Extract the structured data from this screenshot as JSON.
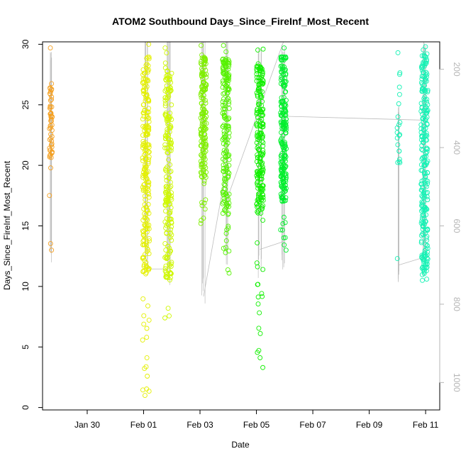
{
  "chart_data": {
    "type": "scatter",
    "title": "ATOM2 Southbound Days_Since_FireInf_Most_Recent",
    "xlabel": "Date",
    "ylabel": "Days_Since_FireInf_Most_Recent",
    "x_ticks": [
      "Jan 30",
      "Feb 01",
      "Feb 03",
      "Feb 05",
      "Feb 07",
      "Feb 09",
      "Feb 11"
    ],
    "y_ticks": [
      "0",
      "5",
      "10",
      "15",
      "20",
      "25",
      "30"
    ],
    "y2_ticks": [
      "200",
      "400",
      "600",
      "800",
      "1000"
    ],
    "xlim": [
      "Jan 28 10:00",
      "Feb 11 12:00"
    ],
    "ylim": [
      -0.2,
      30.2
    ],
    "y2lim": [
      1070,
      130
    ],
    "grid": false,
    "colors": {
      "orange": "#f5a020",
      "yellow": "#e4f000",
      "yellowgreen": "#cff800",
      "green1": "#7fef00",
      "green2": "#55f200",
      "green3": "#11f000",
      "green4": "#00ef2c",
      "cyan": "#15f2b5",
      "line": "#bdbdbd",
      "right_axis": "#b5b5b5"
    },
    "flights": [
      {
        "date": "Jan 28 17:00",
        "color": "orange",
        "count": 55,
        "ymin": 13.0,
        "ymax": 29.7,
        "dense": [
          20.5,
          26.5
        ],
        "spread": 0.05,
        "alt_top": 150,
        "alt_bottom": 720
      },
      {
        "date": "Feb 01 02:00",
        "color": "yellow",
        "count": 230,
        "ymin": 1.0,
        "ymax": 30.0,
        "dense": [
          11.0,
          29.0
        ],
        "spread": 0.12,
        "alt_top": 100,
        "alt_bottom": 720
      },
      {
        "date": "Feb 01 21:00",
        "color": "yellowgreen",
        "count": 200,
        "ymin": 7.4,
        "ymax": 29.7,
        "dense": [
          10.5,
          28.0
        ],
        "spread": 0.12,
        "alt_top": 100,
        "alt_bottom": 760
      },
      {
        "date": "Feb 03 03:00",
        "color": "green1",
        "count": 170,
        "ymin": 15.2,
        "ymax": 29.9,
        "dense": [
          19.0,
          29.0
        ],
        "spread": 0.1,
        "alt_top": 110,
        "alt_bottom": 800
      },
      {
        "date": "Feb 03 22:00",
        "color": "green2",
        "count": 190,
        "ymin": 11.1,
        "ymax": 29.9,
        "dense": [
          16.0,
          29.0
        ],
        "spread": 0.12,
        "alt_top": 110,
        "alt_bottom": 700
      },
      {
        "date": "Feb 05 03:00",
        "color": "green3",
        "count": 220,
        "ymin": 3.3,
        "ymax": 29.6,
        "dense": [
          16.0,
          28.5
        ],
        "spread": 0.12,
        "alt_top": 130,
        "alt_bottom": 740
      },
      {
        "date": "Feb 05 23:00",
        "color": "green4",
        "count": 210,
        "ymin": 13.0,
        "ymax": 29.7,
        "dense": [
          17.0,
          29.0
        ],
        "spread": 0.1,
        "alt_top": 130,
        "alt_bottom": 730
      },
      {
        "date": "Feb 10 01:00",
        "color": "cyan",
        "count": 22,
        "ymin": 12.3,
        "ymax": 29.3,
        "dense": [
          19.5,
          29.3
        ],
        "spread": 0.05,
        "alt_top": 290,
        "alt_bottom": 770
      },
      {
        "date": "Feb 10 23:00",
        "color": "cyan",
        "count": 260,
        "ymin": 10.5,
        "ymax": 29.8,
        "dense": [
          11.0,
          29.5
        ],
        "spread": 0.12,
        "alt_top": 130,
        "alt_bottom": 740
      }
    ],
    "track_connectors": [
      {
        "from": [
          "Feb 01 02:00",
          710
        ],
        "to": [
          "Feb 01 21:00",
          710
        ]
      },
      {
        "from": [
          "Feb 03 03:00",
          780
        ],
        "to": [
          "Feb 03 22:00",
          460
        ]
      },
      {
        "from": [
          "Feb 03 22:00",
          540
        ],
        "to": [
          "Feb 05 23:00",
          130
        ]
      },
      {
        "from": [
          "Feb 05 03:00",
          660
        ],
        "to": [
          "Feb 05 23:00",
          640
        ]
      },
      {
        "from": [
          "Feb 05 23:00",
          320
        ],
        "to": [
          "Feb 10 23:00",
          330
        ]
      },
      {
        "from": [
          "Feb 10 01:00",
          700
        ],
        "to": [
          "Feb 10 23:00",
          680
        ]
      }
    ]
  }
}
